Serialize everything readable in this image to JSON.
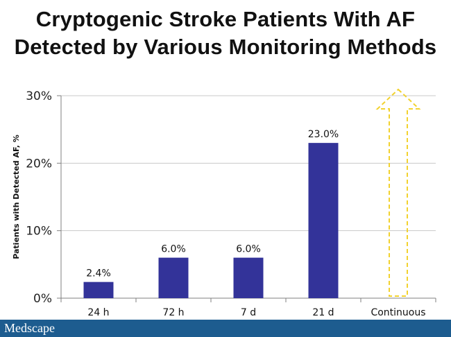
{
  "chart_data": {
    "type": "bar",
    "title_lines": [
      "Cryptogenic Stroke Patients With AF",
      "Detected by Various Monitoring Methods"
    ],
    "ylabel": "Patients with Detected AF, %",
    "xlabel": "",
    "categories": [
      "24 h",
      "72 h",
      "7 d",
      "21 d",
      "Continuous"
    ],
    "values": [
      2.4,
      6.0,
      6.0,
      23.0,
      null
    ],
    "data_labels": [
      "2.4%",
      "6.0%",
      "6.0%",
      "23.0%",
      ""
    ],
    "ylim": [
      0,
      30
    ],
    "yticks": [
      0,
      10,
      20,
      30
    ],
    "ytick_labels": [
      "0%",
      "10%",
      "20%",
      "30%"
    ],
    "grid": true,
    "legend": "none",
    "bar_color": "#333399",
    "annotation": {
      "category": "Continuous",
      "shape": "dashed-up-arrow",
      "color": "#f2d22e",
      "points_to": 30
    }
  },
  "footer": {
    "brand": "Medscape"
  }
}
